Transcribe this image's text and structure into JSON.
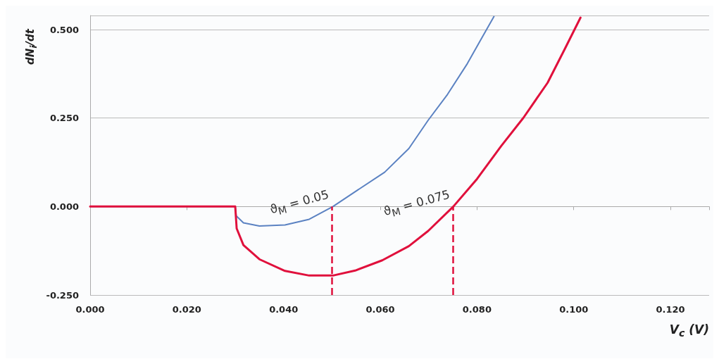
{
  "chart_data": {
    "type": "line",
    "xlabel": "V$_{c}$ (V)",
    "ylabel": "dN$_{i}$/dt",
    "xlim": [
      0,
      0.128
    ],
    "ylim": [
      -0.25,
      0.54
    ],
    "xticks": [
      {
        "value": 0,
        "label": "0.000"
      },
      {
        "value": 0.02,
        "label": "0.020"
      },
      {
        "value": 0.04,
        "label": "0.040"
      },
      {
        "value": 0.06,
        "label": "0.060"
      },
      {
        "value": 0.08,
        "label": "0.080"
      },
      {
        "value": 0.1,
        "label": "0.100"
      },
      {
        "value": 0.12,
        "label": "0.120"
      }
    ],
    "yticks": [
      {
        "value": -0.25,
        "label": "-0.250"
      },
      {
        "value": 0,
        "label": "0.000"
      },
      {
        "value": 0.25,
        "label": "0.250"
      },
      {
        "value": 0.5,
        "label": "0.500"
      }
    ],
    "grid": "y",
    "marker": "none",
    "line_style": "solid",
    "series": [
      {
        "color": "#5b82c2",
        "x": [
          0,
          0.03,
          0.0302,
          0.0317,
          0.035,
          0.0403,
          0.0453,
          0.0502,
          0.0558,
          0.0609,
          0.0659,
          0.0699,
          0.0739,
          0.078,
          0.081,
          0.0835
        ],
        "values": [
          0,
          0,
          -0.026,
          -0.046,
          -0.055,
          -0.052,
          -0.036,
          0,
          0.051,
          0.097,
          0.164,
          0.244,
          0.317,
          0.404,
          0.477,
          0.537
        ]
      },
      {
        "color": "#e0103c",
        "x": [
          0,
          0.03,
          0.0303,
          0.0317,
          0.035,
          0.0403,
          0.0453,
          0.0502,
          0.0548,
          0.0604,
          0.0659,
          0.0699,
          0.0751,
          0.08,
          0.085,
          0.0896,
          0.0946,
          0.0981,
          0.1014
        ],
        "values": [
          0,
          0,
          -0.062,
          -0.109,
          -0.149,
          -0.182,
          -0.195,
          -0.195,
          -0.181,
          -0.152,
          -0.112,
          -0.069,
          0,
          0.078,
          0.171,
          0.251,
          0.35,
          0.444,
          0.534
        ]
      }
    ],
    "ref_lines": [
      {
        "axis": "x",
        "value": 0.05,
        "color": "#e0103c",
        "line_style": "dashed"
      },
      {
        "axis": "x",
        "value": 0.075,
        "color": "#e0103c",
        "line_style": "dashed"
      }
    ],
    "annotations": [
      {
        "text": "ϑ$_{M}$ = 0.05",
        "x": 0.05,
        "y": 0
      },
      {
        "text": "ϑ$_{M}$ = 0.075",
        "x": 0.075,
        "y": 0
      }
    ]
  }
}
